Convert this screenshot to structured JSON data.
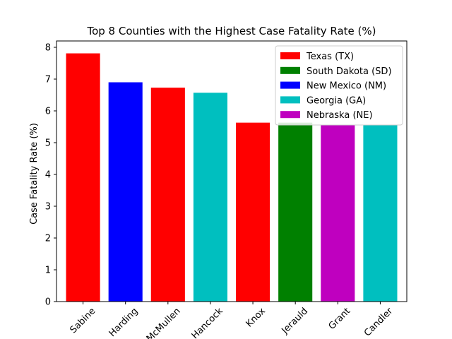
{
  "chart_data": {
    "type": "bar",
    "title": "Top 8 Counties with the Highest Case Fatality Rate (%)",
    "xlabel": "",
    "ylabel": "Case Fatality Rate (%)",
    "ylim": [
      0,
      8.2
    ],
    "yticks": [
      "0",
      "1",
      "2",
      "3",
      "4",
      "5",
      "6",
      "7",
      "8"
    ],
    "categories": [
      "Sabine",
      "Harding",
      "McMullen",
      "Hancock",
      "Knox",
      "Jerauld",
      "Grant",
      "Candler"
    ],
    "values": [
      7.81,
      6.9,
      6.73,
      6.57,
      5.63,
      5.63,
      5.56,
      5.56
    ],
    "bar_states": [
      "Texas (TX)",
      "New Mexico (NM)",
      "Texas (TX)",
      "Georgia (GA)",
      "Texas (TX)",
      "South Dakota (SD)",
      "Nebraska (NE)",
      "Georgia (GA)"
    ],
    "legend": {
      "placement": "top-right",
      "entries": [
        {
          "label": "Texas (TX)",
          "color": "#ff0000"
        },
        {
          "label": "South Dakota (SD)",
          "color": "#008000"
        },
        {
          "label": "New Mexico (NM)",
          "color": "#0000ff"
        },
        {
          "label": "Georgia (GA)",
          "color": "#00bfbf"
        },
        {
          "label": "Nebraska (NE)",
          "color": "#bf00bf"
        }
      ]
    },
    "grid": false
  }
}
